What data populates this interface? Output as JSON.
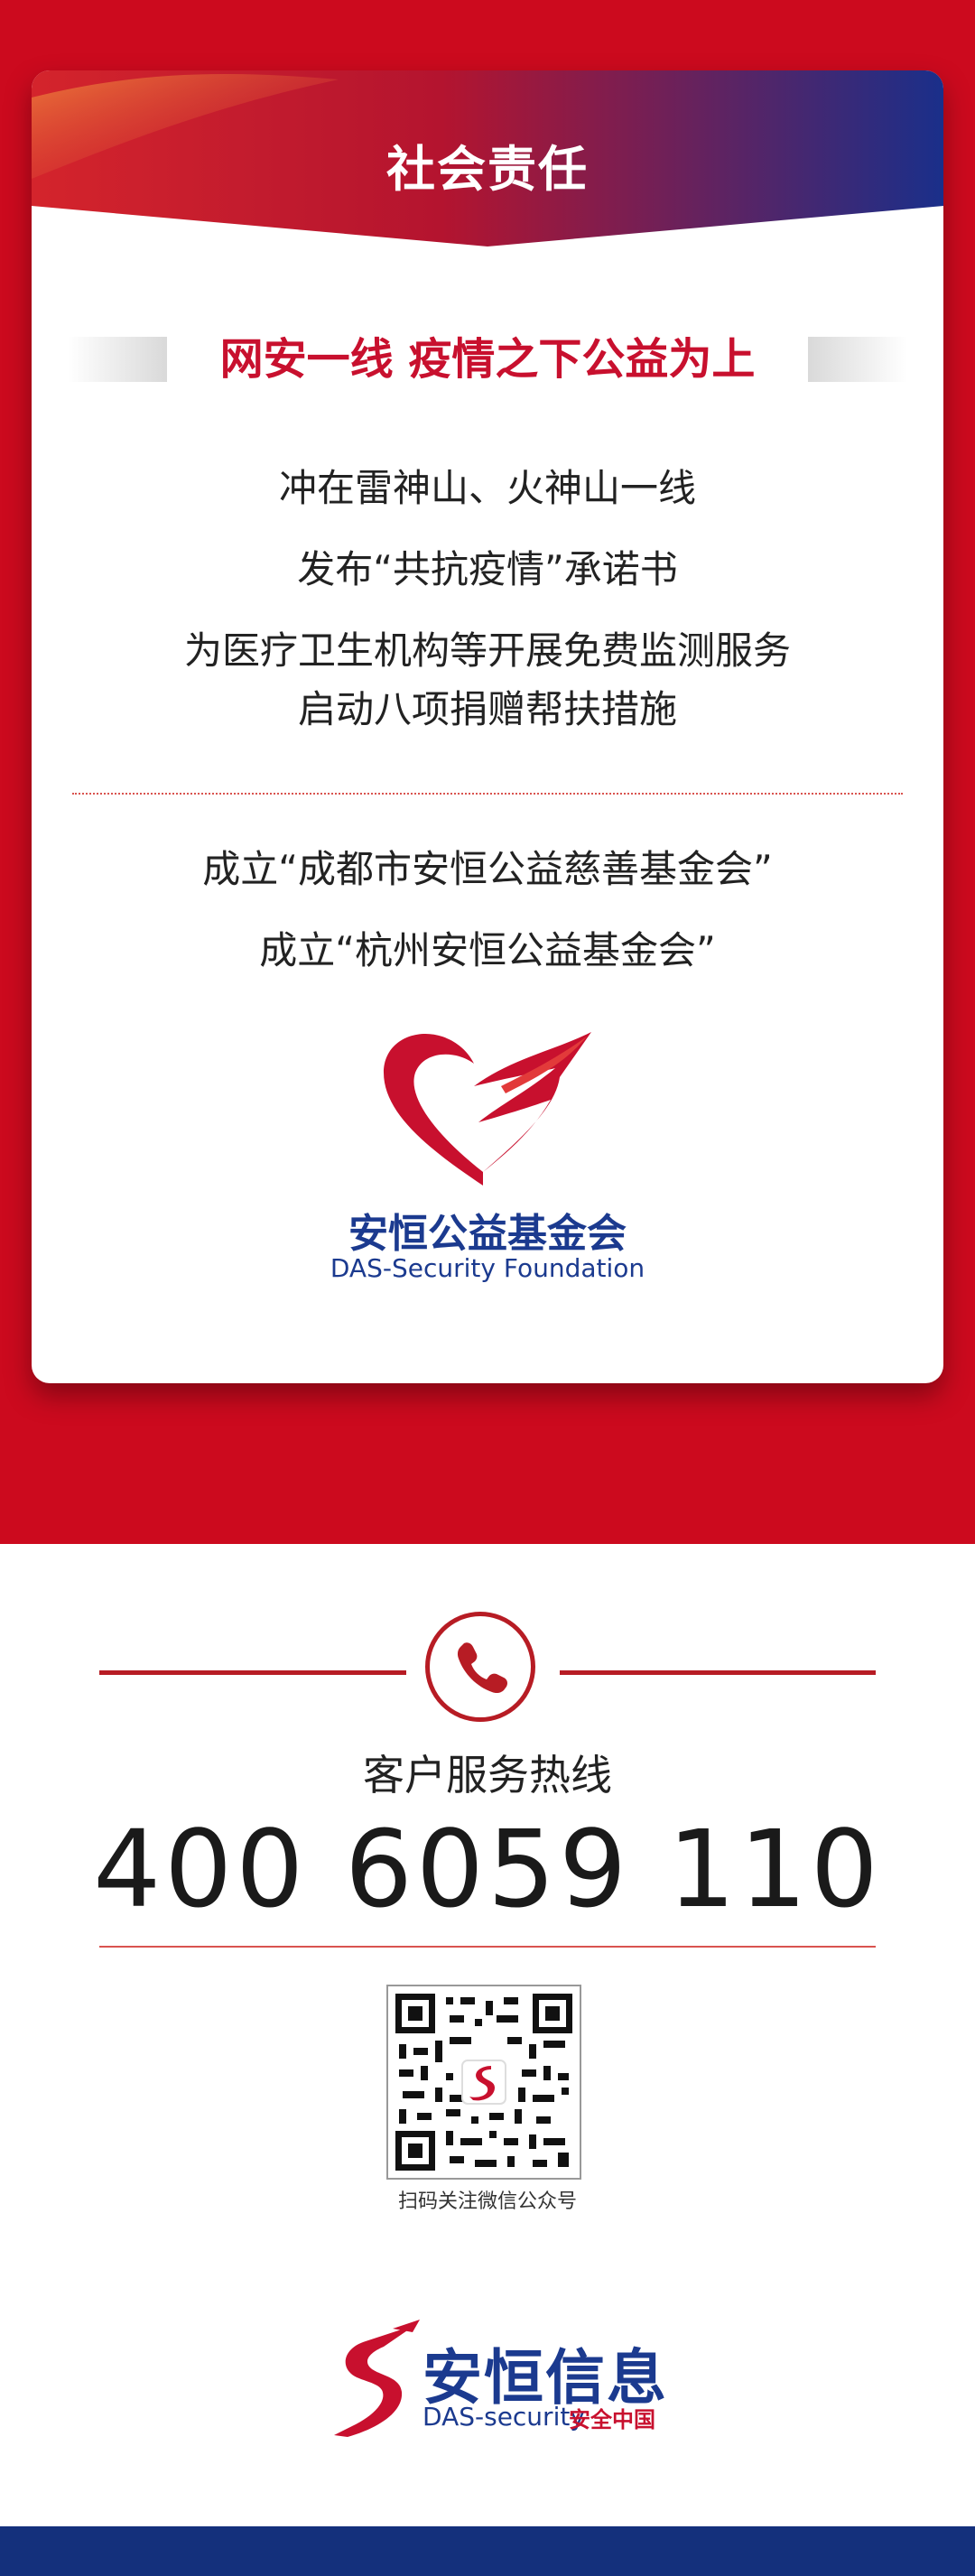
{
  "card": {
    "title": "社会责任",
    "subtitle": "网安一线 疫情之下公益为上",
    "lines": [
      "冲在雷神山、火神山一线",
      "发布“共抗疫情”承诺书",
      "为医疗卫生机构等开展免费监测服务",
      "启动八项捐赠帮扶措施"
    ],
    "foundations": [
      "成立“成都市安恒公益慈善基金会”",
      "成立“杭州安恒公益基金会”"
    ]
  },
  "foundation_logo": {
    "name_cn": "安恒公益基金会",
    "name_en": "DAS-Security Foundation",
    "icon": "heart-wings-icon"
  },
  "contact": {
    "hotline_label": "客户服务热线",
    "hotline_number": "400 6059 110",
    "phone_icon": "phone-icon",
    "qr_caption": "扫码关注微信公众号"
  },
  "company": {
    "name_cn": "安恒信息",
    "name_en": "DAS-security",
    "tagline": "安全中国"
  },
  "colors": {
    "brand_red": "#cc0a1e",
    "brand_blue": "#1b3a8f",
    "footer_blue": "#14307c"
  }
}
